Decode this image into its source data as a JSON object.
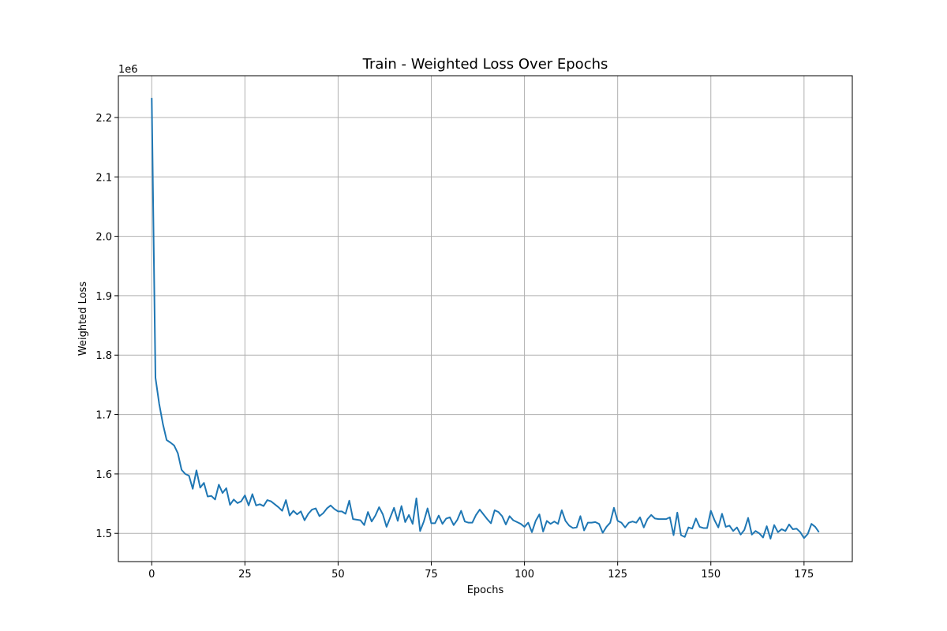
{
  "chart_data": {
    "type": "line",
    "title": "Train - Weighted Loss Over Epochs",
    "xlabel": "Epochs",
    "ylabel": "Weighted Loss",
    "y_offset_label": "1e6",
    "xlim": [
      -8.95,
      187.95
    ],
    "ylim": [
      1.4525,
      2.2703
    ],
    "x_ticks": [
      0,
      25,
      50,
      75,
      100,
      125,
      150,
      175
    ],
    "x_tick_labels": [
      "0",
      "25",
      "50",
      "75",
      "100",
      "125",
      "150",
      "175"
    ],
    "y_ticks": [
      1.5,
      1.6,
      1.7,
      1.8,
      1.9,
      2.0,
      2.1,
      2.2
    ],
    "y_tick_labels": [
      "1.5",
      "1.6",
      "1.7",
      "1.8",
      "1.9",
      "2.0",
      "2.1",
      "2.2"
    ],
    "grid": true,
    "color": "#1f77b4",
    "series": [
      {
        "values": [
          2.233,
          1.762,
          1.718,
          1.684,
          1.657,
          1.653,
          1.648,
          1.635,
          1.607,
          1.6,
          1.597,
          1.575,
          1.606,
          1.577,
          1.585,
          1.562,
          1.563,
          1.557,
          1.582,
          1.568,
          1.576,
          1.548,
          1.557,
          1.551,
          1.554,
          1.564,
          1.547,
          1.566,
          1.547,
          1.549,
          1.546,
          1.556,
          1.554,
          1.549,
          1.544,
          1.538,
          1.556,
          1.53,
          1.538,
          1.532,
          1.537,
          1.522,
          1.533,
          1.54,
          1.542,
          1.529,
          1.534,
          1.542,
          1.547,
          1.541,
          1.537,
          1.537,
          1.533,
          1.555,
          1.524,
          1.523,
          1.522,
          1.514,
          1.536,
          1.52,
          1.53,
          1.544,
          1.532,
          1.511,
          1.527,
          1.543,
          1.521,
          1.546,
          1.519,
          1.531,
          1.516,
          1.559,
          1.504,
          1.52,
          1.542,
          1.517,
          1.517,
          1.53,
          1.516,
          1.525,
          1.527,
          1.514,
          1.523,
          1.538,
          1.52,
          1.518,
          1.518,
          1.531,
          1.54,
          1.532,
          1.524,
          1.517,
          1.539,
          1.536,
          1.529,
          1.515,
          1.529,
          1.522,
          1.519,
          1.516,
          1.511,
          1.518,
          1.502,
          1.521,
          1.532,
          1.503,
          1.521,
          1.516,
          1.52,
          1.516,
          1.539,
          1.521,
          1.513,
          1.509,
          1.51,
          1.529,
          1.505,
          1.518,
          1.518,
          1.519,
          1.516,
          1.501,
          1.511,
          1.518,
          1.543,
          1.521,
          1.518,
          1.51,
          1.518,
          1.52,
          1.518,
          1.527,
          1.51,
          1.524,
          1.531,
          1.525,
          1.524,
          1.524,
          1.524,
          1.527,
          1.497,
          1.535,
          1.497,
          1.494,
          1.51,
          1.508,
          1.525,
          1.511,
          1.509,
          1.509,
          1.538,
          1.522,
          1.51,
          1.533,
          1.511,
          1.513,
          1.504,
          1.51,
          1.498,
          1.506,
          1.526,
          1.498,
          1.504,
          1.5,
          1.493,
          1.512,
          1.491,
          1.514,
          1.502,
          1.507,
          1.504,
          1.515,
          1.507,
          1.508,
          1.502,
          1.492,
          1.499,
          1.516,
          1.511,
          1.502
        ]
      }
    ]
  }
}
